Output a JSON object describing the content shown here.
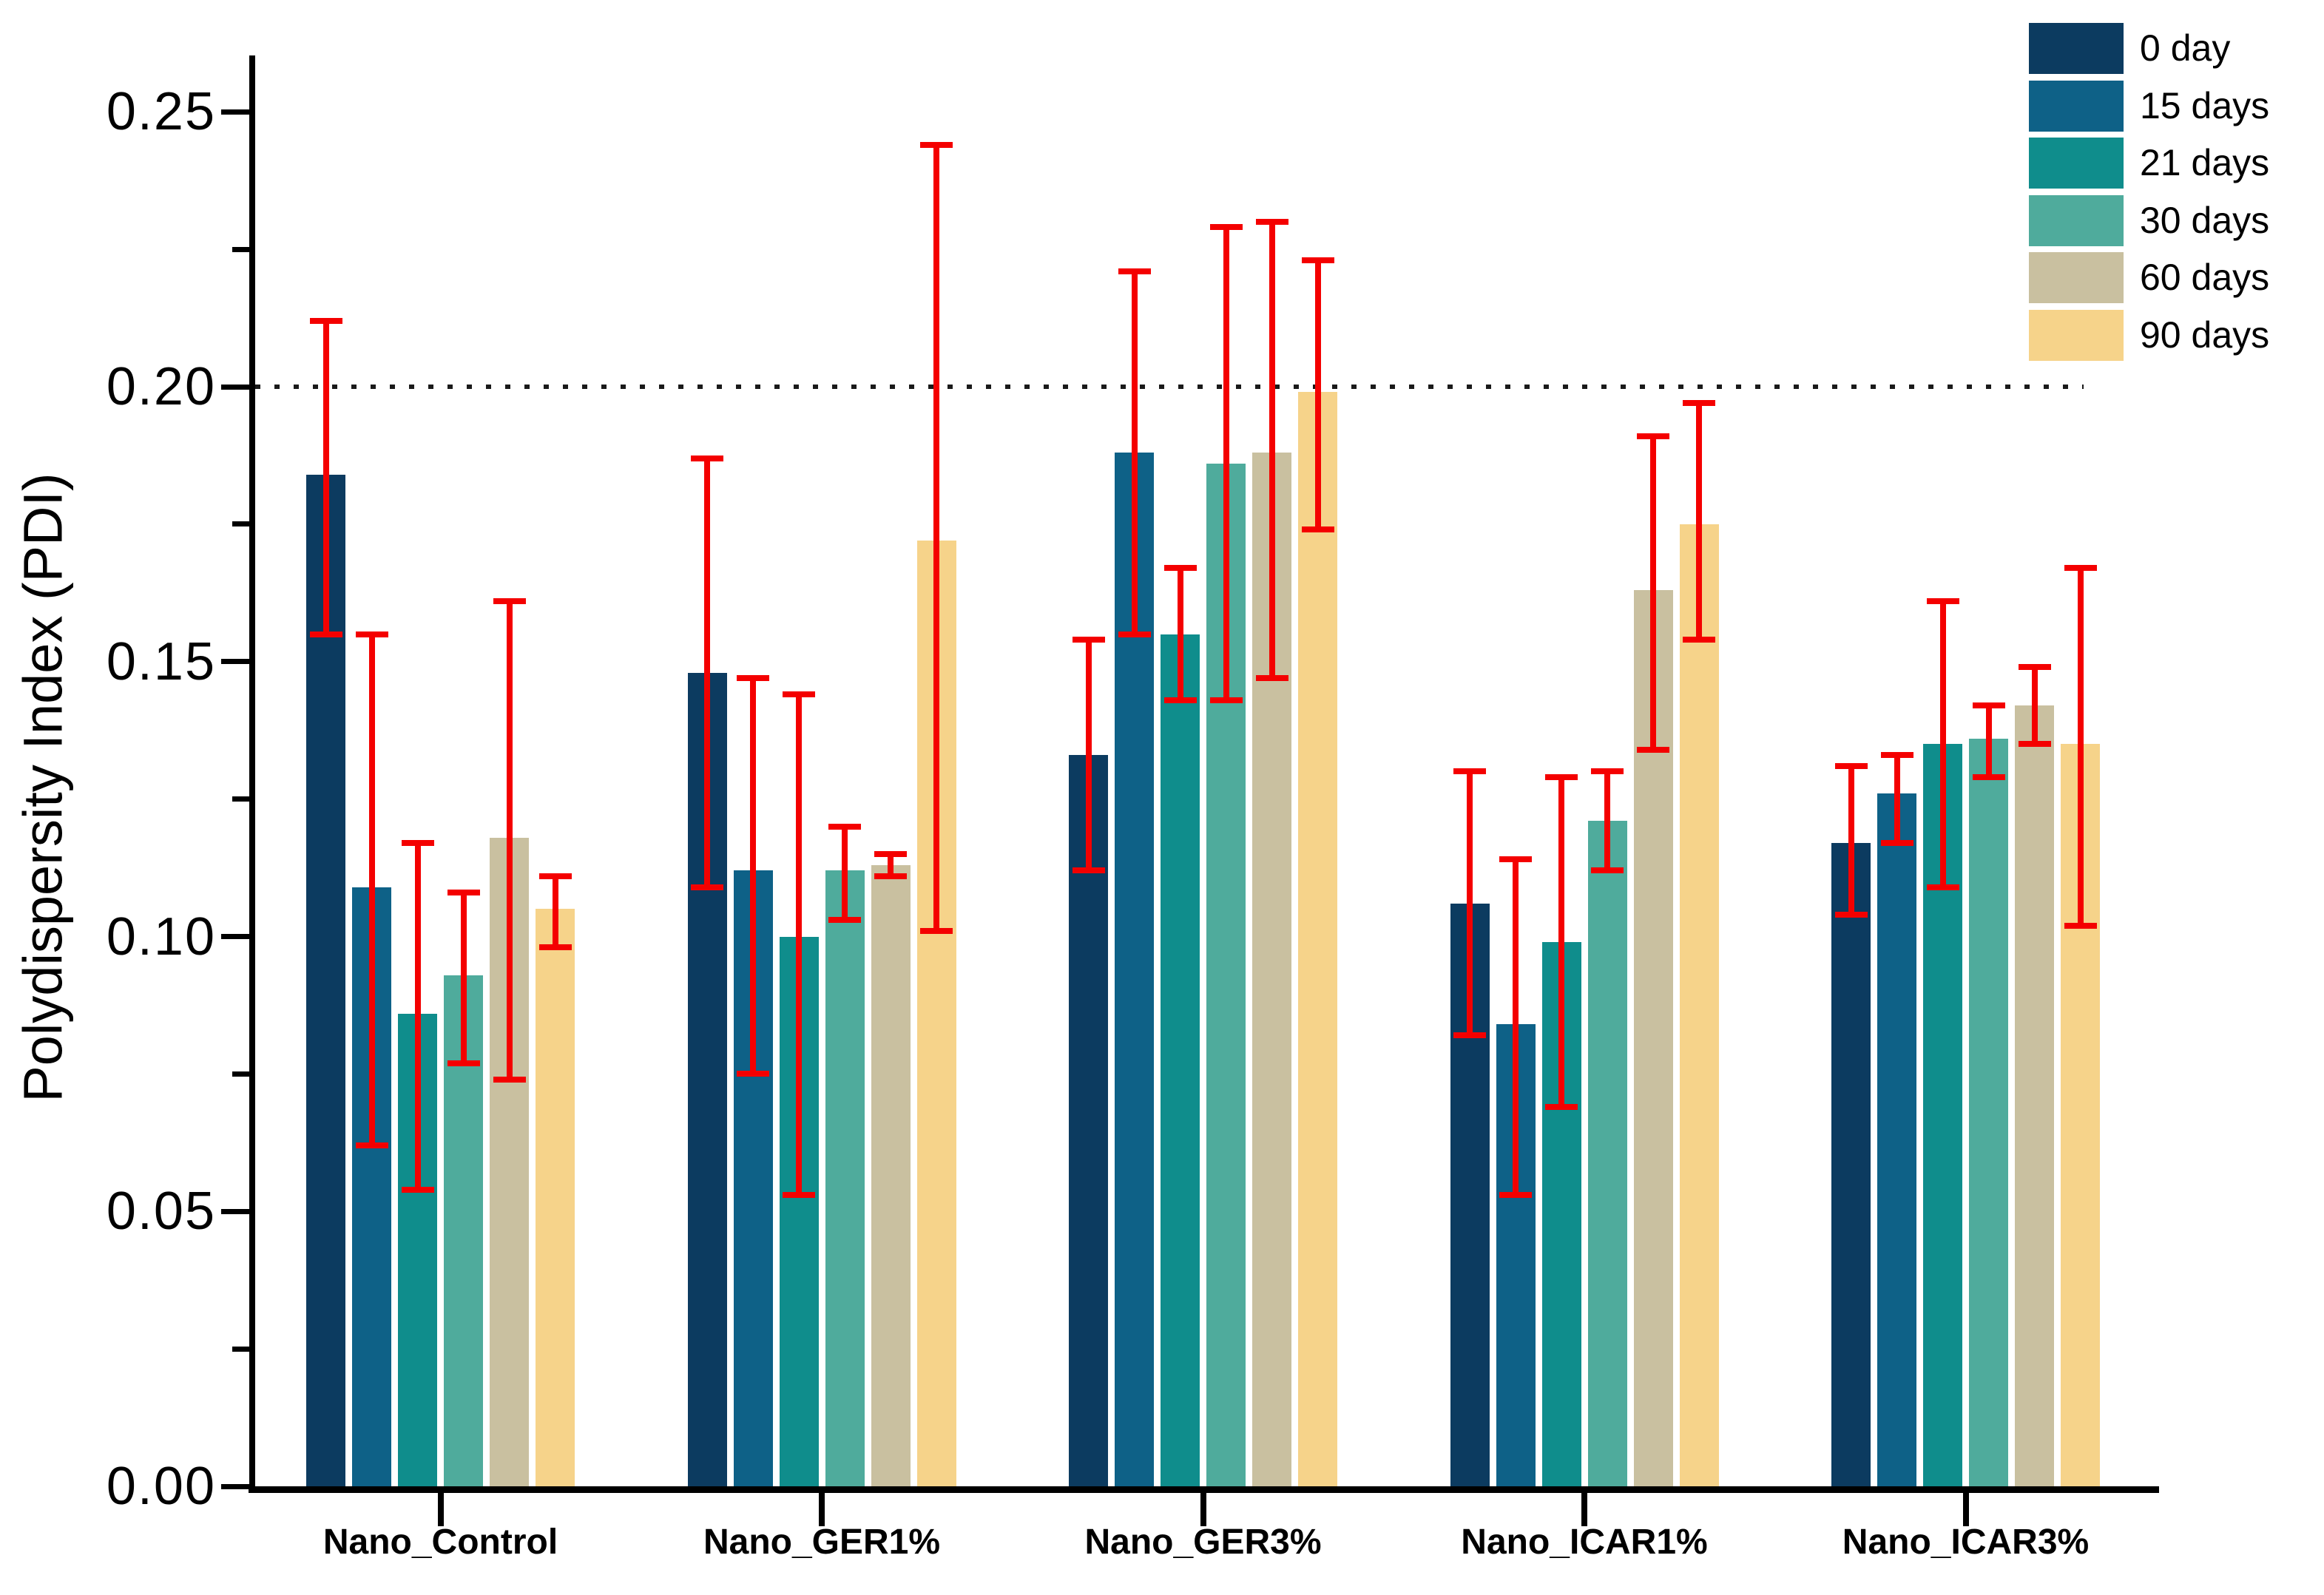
{
  "chart_data": {
    "type": "bar",
    "ylabel": "Polydispersity Index (PDI)",
    "xlabel": "",
    "ylim": [
      0.0,
      0.26
    ],
    "y_ticks": [
      0.0,
      0.05,
      0.1,
      0.15,
      0.2,
      0.25
    ],
    "y_tick_labels": [
      "0.00",
      "0.05",
      "0.10",
      "0.15",
      "0.20",
      "0.25"
    ],
    "y_minor_ticks": [
      0.025,
      0.075,
      0.125,
      0.175,
      0.225
    ],
    "grid": false,
    "reference_line": {
      "y": 0.2,
      "style": "dotted",
      "color": "#1a1a1a"
    },
    "legend_position": "top-right",
    "error_bar_color": "#f40000",
    "axis_color": "#000000",
    "categories": [
      "Nano_Control",
      "Nano_GER1%",
      "Nano_GER3%",
      "Nano_ICAR1%",
      "Nano_ICAR3%"
    ],
    "series": [
      {
        "name": "0 day",
        "color": "#0c3b60",
        "values": [
          0.184,
          0.148,
          0.133,
          0.106,
          0.117
        ],
        "error_high": [
          0.212,
          0.187,
          0.154,
          0.13,
          0.131
        ],
        "error_low": [
          0.155,
          0.109,
          0.112,
          0.082,
          0.104
        ]
      },
      {
        "name": "15 days",
        "color": "#0e6187",
        "values": [
          0.109,
          0.112,
          0.188,
          0.084,
          0.126
        ],
        "error_high": [
          0.155,
          0.147,
          0.221,
          0.114,
          0.133
        ],
        "error_low": [
          0.062,
          0.075,
          0.155,
          0.053,
          0.117
        ]
      },
      {
        "name": "21 days",
        "color": "#0f8d8c",
        "values": [
          0.086,
          0.1,
          0.155,
          0.099,
          0.135
        ],
        "error_high": [
          0.117,
          0.144,
          0.167,
          0.129,
          0.161
        ],
        "error_low": [
          0.054,
          0.053,
          0.143,
          0.069,
          0.109
        ]
      },
      {
        "name": "30 days",
        "color": "#4fab9c",
        "values": [
          0.093,
          0.112,
          0.186,
          0.121,
          0.136
        ],
        "error_high": [
          0.108,
          0.12,
          0.229,
          0.13,
          0.142
        ],
        "error_low": [
          0.077,
          0.103,
          0.143,
          0.112,
          0.129
        ]
      },
      {
        "name": "60 days",
        "color": "#c9c0a0",
        "values": [
          0.118,
          0.113,
          0.188,
          0.163,
          0.142
        ],
        "error_high": [
          0.161,
          0.115,
          0.23,
          0.191,
          0.149
        ],
        "error_low": [
          0.074,
          0.111,
          0.147,
          0.134,
          0.135
        ]
      },
      {
        "name": "90 days",
        "color": "#f6d38a",
        "values": [
          0.105,
          0.172,
          0.199,
          0.175,
          0.135
        ],
        "error_high": [
          0.111,
          0.244,
          0.223,
          0.197,
          0.167
        ],
        "error_low": [
          0.098,
          0.101,
          0.174,
          0.154,
          0.102
        ]
      }
    ]
  }
}
